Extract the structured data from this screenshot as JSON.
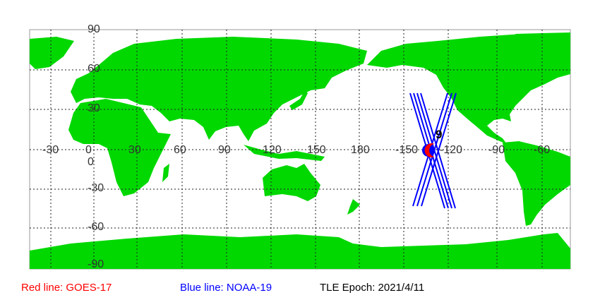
{
  "map": {
    "lon_labels": [
      "-30",
      "0",
      "30",
      "60",
      "90",
      "120",
      "150",
      "180",
      "-150",
      "-120",
      "-90",
      "-60"
    ],
    "lat_labels": [
      "90",
      "60",
      "30",
      "0",
      "-30",
      "-60",
      "-90"
    ],
    "land_color": "#00d800",
    "grid_style": "dotted",
    "satellite_marker_label": "9"
  },
  "legend": {
    "red": {
      "text": "Red line: GOES-17",
      "color": "#ff0000"
    },
    "blue": {
      "text": "Blue line: NOAA-19",
      "color": "#0000ff"
    },
    "epoch": {
      "text": "TLE Epoch: 2021/4/11",
      "color": "#000000"
    }
  }
}
